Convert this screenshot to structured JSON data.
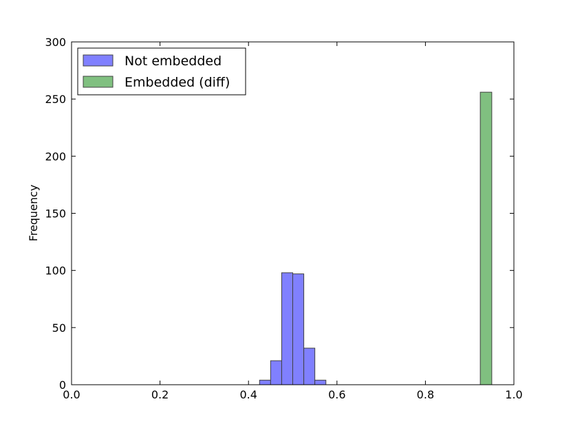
{
  "chart_data": {
    "type": "histogram",
    "ylabel": "Frequency",
    "series": [
      {
        "name": "Not embedded",
        "color": "#8080ff",
        "bins": [
          0.425,
          0.45,
          0.475,
          0.5,
          0.525,
          0.55,
          0.575
        ],
        "values": [
          4,
          21,
          98,
          97,
          32,
          4
        ]
      },
      {
        "name": "Embedded (diff)",
        "color": "#80c080",
        "bins": [
          0.924,
          0.95
        ],
        "values": [
          256
        ]
      }
    ],
    "xlim": [
      0,
      1
    ],
    "xticks": [
      {
        "value": 0,
        "label": "0.0"
      },
      0.2,
      0.4,
      0.6,
      0.8,
      {
        "value": 1,
        "label": "1.0"
      }
    ],
    "ylim": [
      0,
      300
    ],
    "yticks": [
      0,
      50,
      100,
      150,
      200,
      250,
      300
    ],
    "legend": "upper left",
    "grid": false
  }
}
